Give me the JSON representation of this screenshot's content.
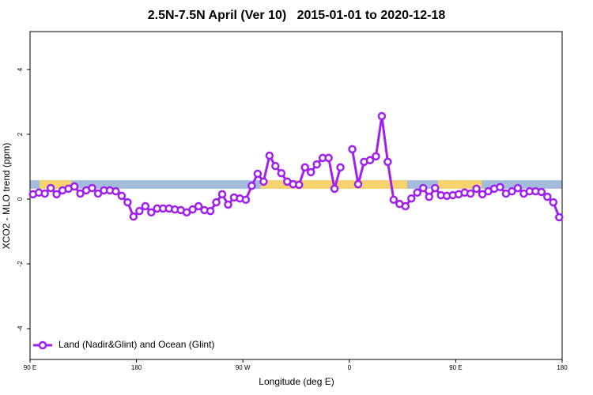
{
  "chart_data": {
    "type": "line",
    "title": "2.5N-7.5N April (Ver 10)   2015-01-01 to 2020-12-18",
    "x_label": "Longitude (deg E)",
    "y_label": "XCO2 - MLO trend (ppm)",
    "xlim": [
      90,
      540
    ],
    "ylim": [
      -4.95,
      5.17
    ],
    "xticks": [
      {
        "value": 90,
        "label": "90 E"
      },
      180,
      {
        "value": 270,
        "label": "90 W"
      },
      {
        "value": 360,
        "label": "0"
      },
      {
        "value": 450,
        "label": "90 E"
      },
      {
        "value": 540,
        "label": "180"
      }
    ],
    "yticks": [
      -4,
      -2,
      0,
      2,
      4
    ],
    "legend": "bottom-left",
    "band": {
      "ylim": [
        0.32,
        0.58
      ],
      "color": "#a3bcdc",
      "land_color": "#f7d36e",
      "land": [
        [
          98,
          125
        ],
        [
          285,
          409
        ],
        [
          435,
          472
        ]
      ]
    },
    "x": [
      92.5,
      97.5,
      102.5,
      107.5,
      112.5,
      117.5,
      122.5,
      127.5,
      132.5,
      137.5,
      142.5,
      147.5,
      152.5,
      157.5,
      162.5,
      167.5,
      172.5,
      177.5,
      182.5,
      187.5,
      192.5,
      197.5,
      202.5,
      207.5,
      212.5,
      217.5,
      222.5,
      227.5,
      232.5,
      237.5,
      242.5,
      247.5,
      252.5,
      257.5,
      262.5,
      267.5,
      272.5,
      277.5,
      282.5,
      287.5,
      292.5,
      297.5,
      302.5,
      307.5,
      312.5,
      317.5,
      322.5,
      327.5,
      332.5,
      337.5,
      342.5,
      347.5,
      352.5,
      357.5,
      362.5,
      367.5,
      372.5,
      377.5,
      382.5,
      387.5,
      392.5,
      397.5,
      402.5,
      407.5,
      412.5,
      417.5,
      422.5,
      427.5,
      432.5,
      437.5,
      442.5,
      447.5,
      452.5,
      457.5,
      462.5,
      467.5,
      472.5,
      477.5,
      482.5,
      487.5,
      492.5,
      497.5,
      502.5,
      507.5,
      512.5,
      517.5,
      522.5,
      527.5,
      532.5,
      537.5
    ],
    "series": [
      {
        "name": "Land (Nadir&Glint) and Ocean (Glint)",
        "color": "#a020f0",
        "values": [
          0.15,
          0.2,
          0.17,
          0.34,
          0.15,
          0.27,
          0.32,
          0.39,
          0.17,
          0.27,
          0.34,
          0.17,
          0.27,
          0.27,
          0.24,
          0.1,
          -0.1,
          -0.54,
          -0.37,
          -0.22,
          -0.41,
          -0.29,
          -0.29,
          -0.29,
          -0.32,
          -0.34,
          -0.41,
          -0.32,
          -0.22,
          -0.34,
          -0.37,
          -0.1,
          0.15,
          -0.17,
          0.05,
          0.02,
          -0.02,
          0.41,
          0.78,
          0.54,
          1.34,
          1.02,
          0.8,
          0.54,
          0.46,
          0.44,
          0.98,
          0.83,
          1.07,
          1.27,
          1.27,
          0.32,
          0.98,
          null,
          1.54,
          0.46,
          1.15,
          1.2,
          1.32,
          2.56,
          1.15,
          -0.02,
          -0.15,
          -0.22,
          0.02,
          0.2,
          0.34,
          0.07,
          0.34,
          0.12,
          0.1,
          0.12,
          0.15,
          0.2,
          0.17,
          0.32,
          0.15,
          0.24,
          0.32,
          0.37,
          0.17,
          0.24,
          0.34,
          0.17,
          0.24,
          0.24,
          0.22,
          0.07,
          -0.1,
          -0.56
        ]
      }
    ]
  }
}
